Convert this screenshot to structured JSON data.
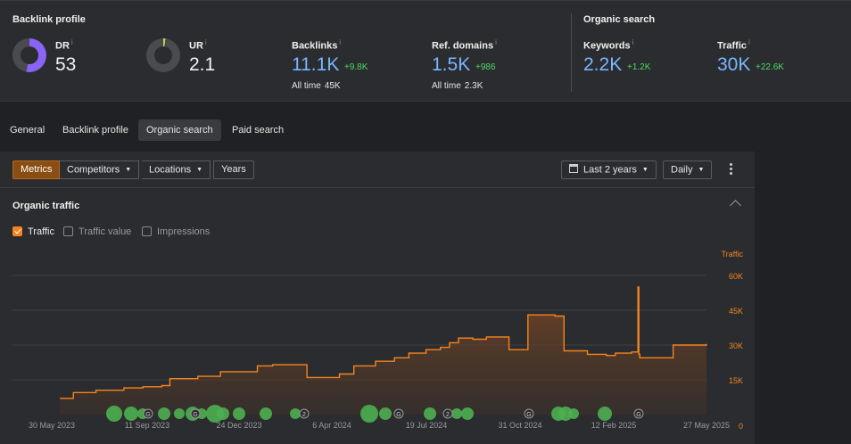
{
  "backlink_profile": {
    "title": "Backlink profile",
    "dr": {
      "label": "DR",
      "value": "53",
      "fill_fraction": 0.53
    },
    "ur": {
      "label": "UR",
      "value": "2.1",
      "fill_fraction": 0.021
    },
    "backlinks": {
      "label": "Backlinks",
      "value": "11.1K",
      "delta": "+9.8K",
      "alltime_label": "All time",
      "alltime_value": "45K"
    },
    "ref_domains": {
      "label": "Ref. domains",
      "value": "1.5K",
      "delta": "+986",
      "alltime_label": "All time",
      "alltime_value": "2.3K"
    }
  },
  "organic_search": {
    "title": "Organic search",
    "keywords": {
      "label": "Keywords",
      "value": "2.2K",
      "delta": "+1.2K"
    },
    "traffic": {
      "label": "Traffic",
      "value": "30K",
      "delta": "+22.6K"
    }
  },
  "info_icon": "i",
  "tabs": [
    {
      "label": "General",
      "active": false
    },
    {
      "label": "Backlink profile",
      "active": false
    },
    {
      "label": "Organic search",
      "active": true
    },
    {
      "label": "Paid search",
      "active": false
    }
  ],
  "toolbar": {
    "segments": [
      {
        "label": "Metrics",
        "active": true
      },
      {
        "label": "Competitors",
        "dropdown": true
      },
      {
        "label": "Locations",
        "dropdown": true
      },
      {
        "label": "Years",
        "dropdown": false
      }
    ],
    "date_range": "Last 2 years",
    "granularity": "Daily"
  },
  "chart_section": {
    "title": "Organic traffic",
    "checkboxes": [
      {
        "label": "Traffic",
        "checked": true
      },
      {
        "label": "Traffic value",
        "checked": false
      },
      {
        "label": "Impressions",
        "checked": false
      }
    ]
  },
  "chart_data": {
    "type": "area",
    "ylabel": "Traffic",
    "ylim": [
      0,
      60000
    ],
    "y_ticks": [
      0,
      15000,
      30000,
      45000,
      60000
    ],
    "y_tick_labels": [
      "0",
      "15K",
      "30K",
      "45K",
      "60K"
    ],
    "x_tick_labels": [
      "30 May 2023",
      "11 Sep 2023",
      "24 Dec 2023",
      "6 Apr 2024",
      "19 Jul 2024",
      "31 Oct 2024",
      "12 Feb 2025",
      "27 May 2025"
    ],
    "x_range": [
      "2023-05-30",
      "2025-05-27"
    ],
    "grid": true,
    "line_color": "#f5841f",
    "series": [
      {
        "name": "Traffic",
        "x": [
          "2023-06-10",
          "2023-06-25",
          "2023-07-20",
          "2023-08-20",
          "2023-09-10",
          "2023-10-01",
          "2023-10-10",
          "2023-11-10",
          "2023-12-05",
          "2024-01-15",
          "2024-02-01",
          "2024-03-10",
          "2024-04-15",
          "2024-05-01",
          "2024-05-25",
          "2024-06-15",
          "2024-07-01",
          "2024-07-20",
          "2024-08-05",
          "2024-08-15",
          "2024-08-25",
          "2024-09-10",
          "2024-09-25",
          "2024-10-20",
          "2024-11-08",
          "2024-11-10",
          "2024-12-10",
          "2024-12-20",
          "2025-01-15",
          "2025-02-05",
          "2025-02-15",
          "2025-03-05",
          "2025-03-12",
          "2025-03-13",
          "2025-03-14",
          "2025-04-10",
          "2025-04-20",
          "2025-05-27"
        ],
        "y": [
          7000,
          9500,
          10500,
          11500,
          12000,
          12500,
          15500,
          16500,
          18500,
          21000,
          21500,
          16000,
          17500,
          21000,
          23000,
          24500,
          26500,
          28000,
          29000,
          31000,
          33000,
          32500,
          33500,
          28000,
          28000,
          43000,
          42500,
          27500,
          26000,
          25500,
          26500,
          27000,
          55000,
          26000,
          24500,
          24500,
          30000,
          30500
        ]
      }
    ],
    "annotations": {
      "google_update_label": "G",
      "numbered_marker_label": "2"
    }
  }
}
